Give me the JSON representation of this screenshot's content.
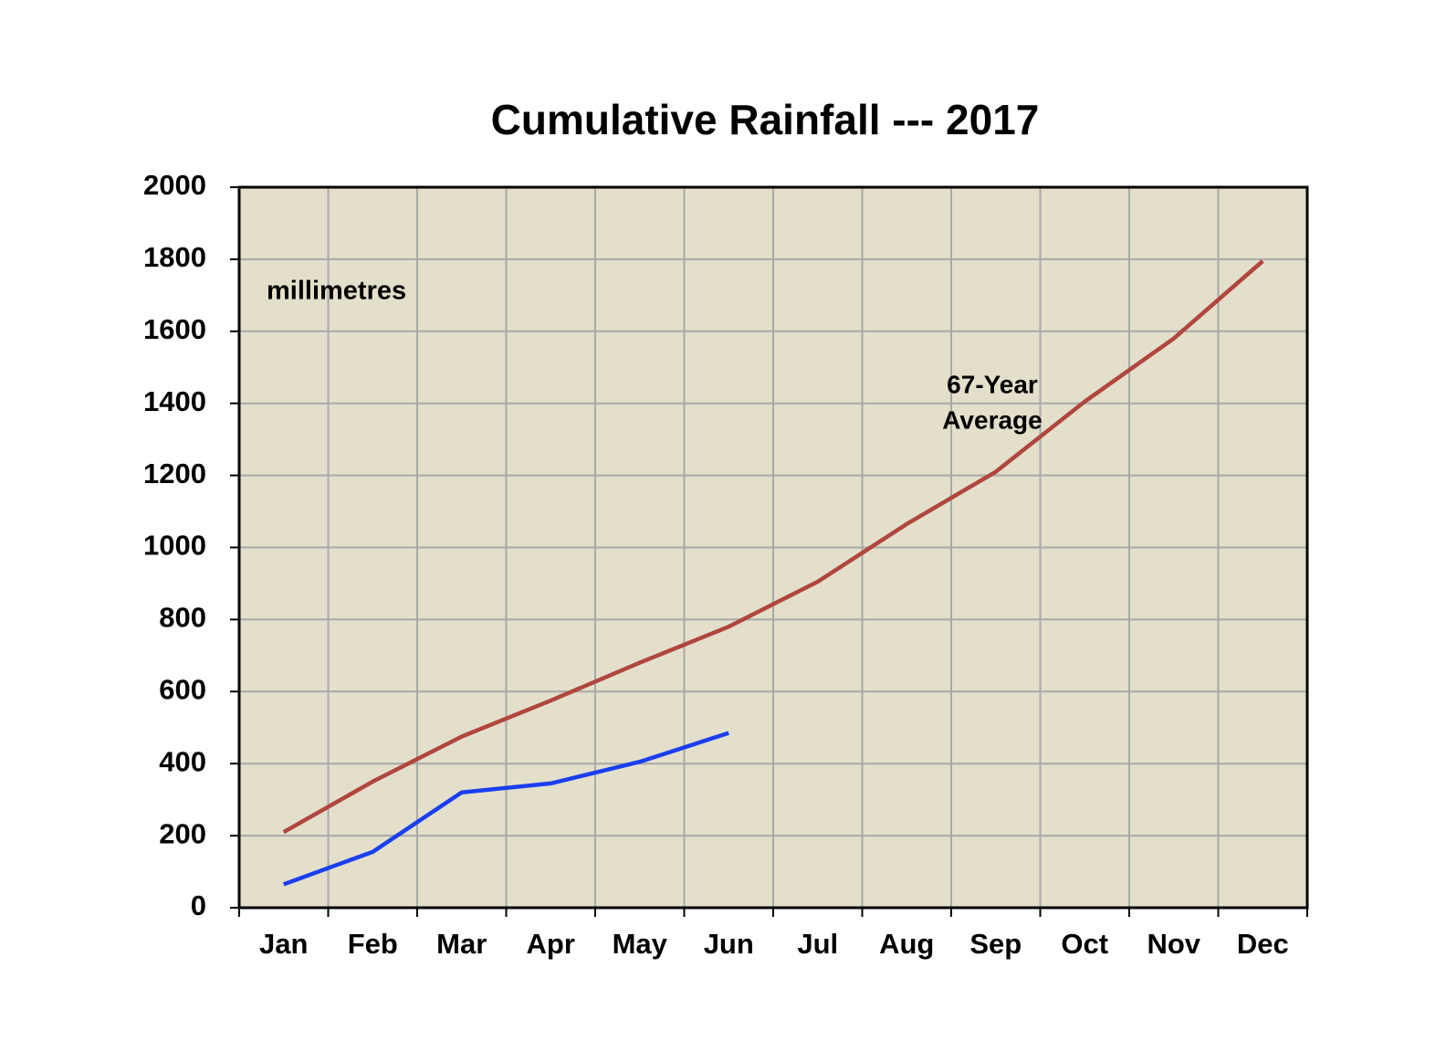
{
  "chart_data": {
    "type": "line",
    "title": "Cumulative Rainfall --- 2017",
    "y_label": "millimetres",
    "annotation_lines": [
      "67-Year",
      "Average"
    ],
    "categories": [
      "Jan",
      "Feb",
      "Mar",
      "Apr",
      "May",
      "Jun",
      "Jul",
      "Aug",
      "Sep",
      "Oct",
      "Nov",
      "Dec"
    ],
    "series": [
      {
        "color": "#b0463e",
        "values": [
          210,
          350,
          475,
          575,
          680,
          780,
          905,
          1065,
          1210,
          1405,
          1580,
          1795
        ]
      },
      {
        "color": "#1a3ff0",
        "values": [
          65,
          155,
          320,
          345,
          405,
          485,
          null,
          null,
          null,
          null,
          null,
          null
        ]
      }
    ],
    "ylim": [
      0,
      2000
    ],
    "yticks": [
      0,
      200,
      400,
      600,
      800,
      1000,
      1200,
      1400,
      1600,
      1800,
      2000
    ],
    "grid": true,
    "plot_background": "#e3dfcb"
  }
}
